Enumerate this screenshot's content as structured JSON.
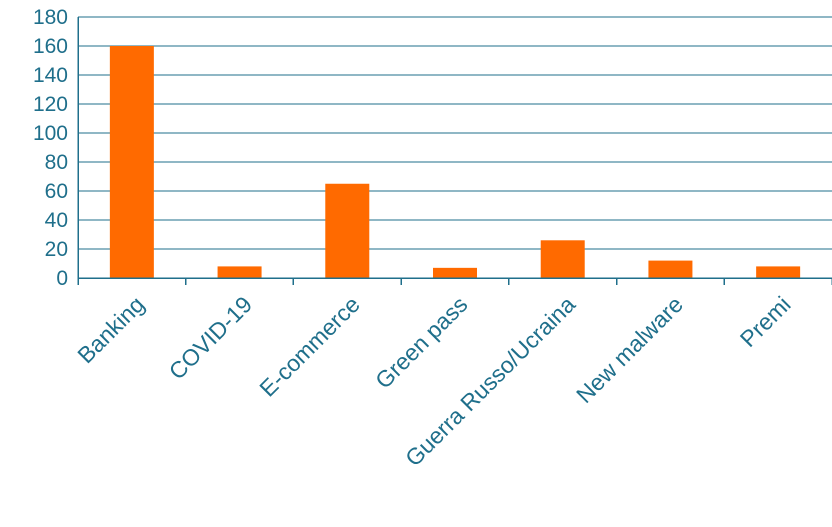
{
  "chart_data": {
    "type": "bar",
    "categories": [
      "Banking",
      "COVID-19",
      "E-commerce",
      "Green pass",
      "Guerra Russo/Ucraina",
      "New malware",
      "Premi"
    ],
    "values": [
      160,
      8,
      65,
      7,
      26,
      12,
      8
    ],
    "ylim": [
      0,
      180
    ],
    "yticks": [
      0,
      20,
      40,
      60,
      80,
      100,
      120,
      140,
      160,
      180
    ],
    "bar_color": "#ff6a00",
    "text_color": "#1f6f8b",
    "grid": true,
    "title": "",
    "xlabel": "",
    "ylabel": ""
  }
}
